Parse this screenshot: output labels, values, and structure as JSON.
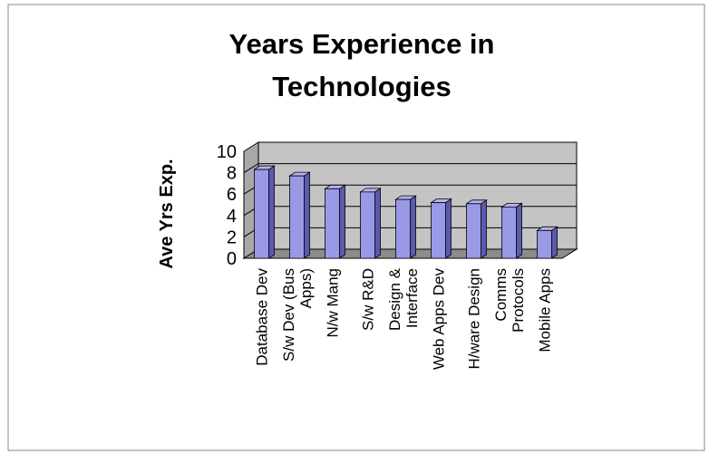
{
  "chart_data": {
    "type": "bar",
    "title": [
      "Years Experience in",
      "Technologies"
    ],
    "ylabel": "Ave Yrs Exp.",
    "xlabel": "",
    "ylim": [
      0,
      10
    ],
    "yticks": [
      "0",
      "2",
      "4",
      "6",
      "8",
      "10"
    ],
    "categories": [
      [
        "Database Dev"
      ],
      [
        "S/w Dev (Bus",
        "Apps)"
      ],
      [
        "N/w Mang"
      ],
      [
        "S/w R&D"
      ],
      [
        "Design &",
        "Interface"
      ],
      [
        "Web Apps Dev"
      ],
      [
        "H/ware Design"
      ],
      [
        "Comms",
        "Protocols"
      ],
      [
        "Mobile Apps"
      ]
    ],
    "values": [
      8.3,
      7.7,
      6.5,
      6.2,
      5.5,
      5.2,
      5.1,
      4.8,
      2.6
    ],
    "colors": {
      "bar_front": "#9999e6",
      "bar_side": "#5a5ab0",
      "bar_top": "#b4b4f0",
      "bar_edge": "#000000",
      "wall": "#c4c4c4",
      "floor": "#8c8c8c",
      "grid": "#000000"
    },
    "grid": true,
    "style": "3d-column"
  }
}
